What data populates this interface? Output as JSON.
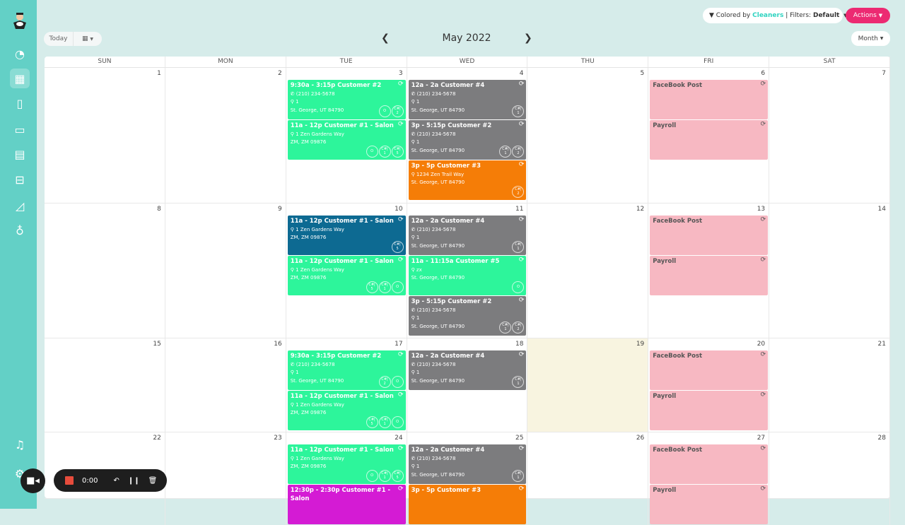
{
  "toolbar": {
    "today": "Today",
    "month_title": "May 2022",
    "view": "Month",
    "filter_prefix": "Colored by",
    "filter_value": "Cleaners",
    "filters_label": "| Filters:",
    "filters_value": "Default",
    "actions": "Actions"
  },
  "recorder": {
    "time": "0:00"
  },
  "dow": [
    "SUN",
    "MON",
    "TUE",
    "WED",
    "THU",
    "FRI",
    "SAT"
  ],
  "colors": {
    "green": "#2df59b",
    "gray": "#7c7c7e",
    "orange": "#f57d07",
    "blue": "#0d6a92",
    "pink": "#f7b8c2",
    "magenta": "#d41bd4",
    "sidebar": "#63d0c6",
    "actions": "#ec2a72"
  },
  "today_date": "19",
  "weeks": [
    {
      "days": [
        {
          "n": "1"
        },
        {
          "n": "2"
        },
        {
          "n": "3",
          "events": [
            {
              "c": "green",
              "time": "9:30a - 3:15p",
              "title": "Customer #2",
              "phone": "(210) 234-5678",
              "a1": "1",
              "a2": "St. George, UT 84790",
              "badges": [
                "O",
                "C#|2"
              ]
            },
            {
              "c": "green",
              "time": "11a - 12p",
              "title": "Customer #1 - Salon",
              "a1": "1 Zen Gardens Way",
              "a2": "ZM, ZM 09876",
              "badges": [
                "O",
                "C#|1",
                "C#|5"
              ]
            }
          ]
        },
        {
          "n": "4",
          "events": [
            {
              "c": "gray",
              "time": "12a - 2a",
              "title": "Customer #4",
              "phone": "(210) 234-5678",
              "a1": "1",
              "a2": "St. George, UT 84790",
              "badges": [
                "C#|1"
              ]
            },
            {
              "c": "gray",
              "time": "3p - 5:15p",
              "title": "Customer #2",
              "phone": "(210) 234-5678",
              "a1": "1",
              "a2": "St. George, UT 84790",
              "badges": [
                "C#|1",
                "C#|2"
              ]
            },
            {
              "c": "orange",
              "time": "3p - 5p",
              "title": "Customer #3",
              "a1": "1234 Zen Trail Way",
              "a2": "St. George, UT 84790",
              "badges": [
                "C#|2"
              ]
            }
          ]
        },
        {
          "n": "5"
        },
        {
          "n": "6",
          "events": [
            {
              "c": "pink",
              "title": "FaceBook Post"
            },
            {
              "c": "pink",
              "title": "Payroll"
            }
          ]
        },
        {
          "n": "7"
        }
      ]
    },
    {
      "days": [
        {
          "n": "8"
        },
        {
          "n": "9"
        },
        {
          "n": "10",
          "events": [
            {
              "c": "blue",
              "time": "11a - 12p",
              "title": "Customer #1 - Salon",
              "a1": "1 Zen Gardens Way",
              "a2": "ZM, ZM 09876",
              "badges": [
                "C#|5"
              ]
            },
            {
              "c": "green",
              "time": "11a - 12p",
              "title": "Customer #1 - Salon",
              "a1": "1 Zen Gardens Way",
              "a2": "ZM, ZM 09876",
              "badges": [
                "C#|5",
                "C#|1",
                "O"
              ]
            }
          ]
        },
        {
          "n": "11",
          "events": [
            {
              "c": "gray",
              "time": "12a - 2a",
              "title": "Customer #4",
              "phone": "(210) 234-5678",
              "a1": "1",
              "a2": "St. George, UT 84790",
              "badges": [
                "C#|1"
              ]
            },
            {
              "c": "green",
              "time": "11a - 11:15a",
              "title": "Customer #5",
              "a1": "zx",
              "a2": "St. George, UT 84790",
              "badges": [
                "O"
              ]
            },
            {
              "c": "gray",
              "time": "3p - 5:15p",
              "title": "Customer #2",
              "phone": "(210) 234-5678",
              "a1": "1",
              "a2": "St. George, UT 84790",
              "badges": [
                "C#|1",
                "C#|2"
              ]
            }
          ]
        },
        {
          "n": "12"
        },
        {
          "n": "13",
          "events": [
            {
              "c": "pink",
              "title": "FaceBook Post"
            },
            {
              "c": "pink",
              "title": "Payroll"
            }
          ]
        },
        {
          "n": "14"
        }
      ]
    },
    {
      "days": [
        {
          "n": "15"
        },
        {
          "n": "16"
        },
        {
          "n": "17",
          "events": [
            {
              "c": "green",
              "time": "9:30a - 3:15p",
              "title": "Customer #2",
              "phone": "(210) 234-5678",
              "a1": "1",
              "a2": "St. George, UT 84790",
              "badges": [
                "C#|2",
                "O"
              ]
            },
            {
              "c": "green",
              "time": "11a - 12p",
              "title": "Customer #1 - Salon",
              "a1": "1 Zen Gardens Way",
              "a2": "ZM, ZM 09876",
              "badges": [
                "C#|5",
                "C#|1",
                "O"
              ]
            }
          ]
        },
        {
          "n": "18",
          "events": [
            {
              "c": "gray",
              "time": "12a - 2a",
              "title": "Customer #4",
              "phone": "(210) 234-5678",
              "a1": "1",
              "a2": "St. George, UT 84790",
              "badges": [
                "C#|1"
              ]
            }
          ]
        },
        {
          "n": "19"
        },
        {
          "n": "20",
          "events": [
            {
              "c": "pink",
              "title": "FaceBook Post"
            },
            {
              "c": "pink",
              "title": "Payroll"
            }
          ]
        },
        {
          "n": "21"
        }
      ]
    },
    {
      "days": [
        {
          "n": "22"
        },
        {
          "n": "23"
        },
        {
          "n": "24",
          "events": [
            {
              "c": "green",
              "time": "11a - 12p",
              "title": "Customer #1 - Salon",
              "a1": "1 Zen Gardens Way",
              "a2": "ZM, ZM 09876",
              "badges": [
                "O",
                "C#|1",
                "C#|5"
              ]
            },
            {
              "c": "magenta",
              "time": "12:30p - 2:30p",
              "title": "Customer #1 - Salon"
            }
          ]
        },
        {
          "n": "25",
          "events": [
            {
              "c": "gray",
              "time": "12a - 2a",
              "title": "Customer #4",
              "phone": "(210) 234-5678",
              "a1": "1",
              "a2": "St. George, UT 84790",
              "badges": [
                "C#|1"
              ]
            },
            {
              "c": "orange",
              "time": "3p - 5p",
              "title": "Customer #3"
            }
          ]
        },
        {
          "n": "26"
        },
        {
          "n": "27",
          "events": [
            {
              "c": "pink",
              "title": "FaceBook Post"
            },
            {
              "c": "pink",
              "title": "Payroll"
            }
          ]
        },
        {
          "n": "28"
        }
      ]
    }
  ]
}
